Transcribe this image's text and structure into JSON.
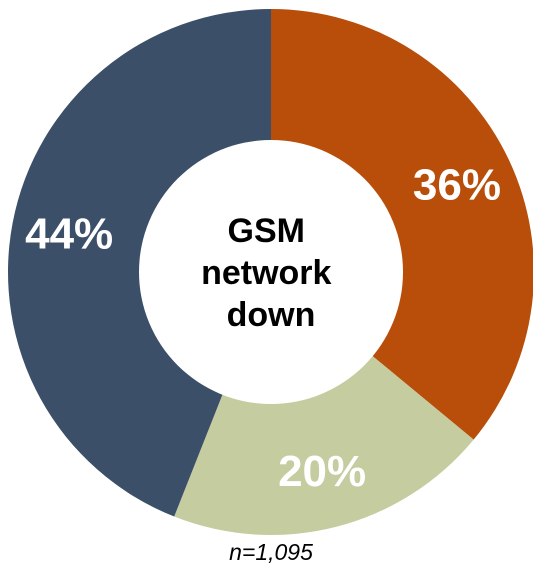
{
  "chart_data": {
    "type": "pie",
    "donut": true,
    "categories": [
      "",
      "",
      ""
    ],
    "values": [
      36,
      20,
      44
    ],
    "value_labels": [
      "36%",
      "20%",
      "44%"
    ],
    "colors": [
      "#B84E0A",
      "#C5CC9F",
      "#3B4F69"
    ],
    "center_text": [
      "GSM",
      "network",
      "down"
    ],
    "start_angle": "12 o'clock",
    "direction": "clockwise",
    "legend": "none",
    "footnote": "n=1,095"
  }
}
